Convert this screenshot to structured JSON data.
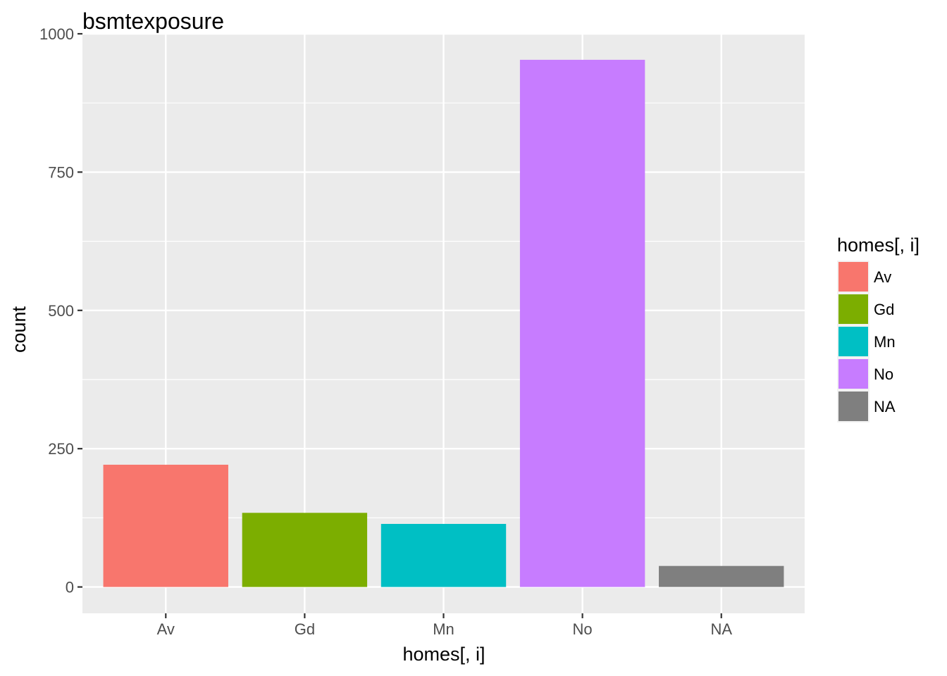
{
  "chart_data": {
    "type": "bar",
    "title": "bsmtexposure",
    "xlabel": "homes[, i]",
    "ylabel": "count",
    "categories": [
      "Av",
      "Gd",
      "Mn",
      "No",
      "NA"
    ],
    "values": [
      221,
      134,
      114,
      953,
      38
    ],
    "colors": [
      "#F8766D",
      "#7CAE00",
      "#00BFC4",
      "#C77CFF",
      "#7F7F7F"
    ],
    "ylim": [
      -47.65,
      1000
    ],
    "yticks": [
      0,
      250,
      500,
      750,
      1000
    ],
    "grid": true,
    "panel_background": "#EBEBEB",
    "legend": {
      "title": "homes[, i]",
      "position": "right",
      "items": [
        "Av",
        "Gd",
        "Mn",
        "No",
        "NA"
      ]
    }
  }
}
